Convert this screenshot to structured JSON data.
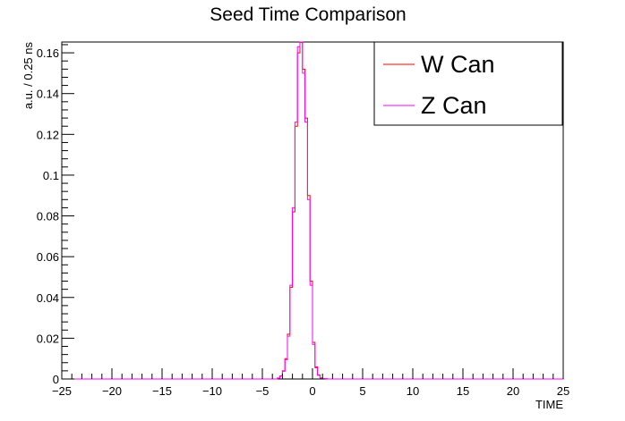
{
  "chart_data": {
    "type": "histogram",
    "title": "Seed Time Comparison",
    "xlabel": "TIME",
    "ylabel": "a.u. / 0.25 ns",
    "xlim": [
      -25,
      25
    ],
    "ylim": [
      0,
      0.1653
    ],
    "bin_width": 0.25,
    "x_ticks": [
      -25,
      -20,
      -15,
      -10,
      -5,
      0,
      5,
      10,
      15,
      20,
      25
    ],
    "x_tick_labels": [
      "−25",
      "−20",
      "−15",
      "−10",
      "−5",
      "0",
      "5",
      "10",
      "15",
      "20",
      "25"
    ],
    "y_ticks": [
      0,
      0.02,
      0.04,
      0.06,
      0.08,
      0.1,
      0.12,
      0.14,
      0.16
    ],
    "y_tick_labels": [
      "0",
      "0.02",
      "0.04",
      "0.06",
      "0.08",
      "0.1",
      "0.12",
      "0.14",
      "0.16"
    ],
    "legend_position": "top-right",
    "series": [
      {
        "name": "W Can",
        "color": "#ff0000",
        "bin_edges_low": [
          -3.5,
          -3.25,
          -3.0,
          -2.75,
          -2.5,
          -2.25,
          -2.0,
          -1.75,
          -1.5,
          -1.25,
          -1.0,
          -0.75,
          -0.5,
          -0.25,
          0.0,
          0.25,
          0.5,
          0.75,
          1.0,
          1.25,
          1.5
        ],
        "values": [
          0.0005,
          0.0015,
          0.004,
          0.01,
          0.022,
          0.045,
          0.082,
          0.124,
          0.16,
          0.165,
          0.152,
          0.128,
          0.09,
          0.048,
          0.018,
          0.006,
          0.002,
          0.0005,
          0.0002,
          0.0001,
          0.0
        ]
      },
      {
        "name": "Z Can",
        "color": "#ff00ff",
        "bin_edges_low": [
          -3.5,
          -3.25,
          -3.0,
          -2.75,
          -2.5,
          -2.25,
          -2.0,
          -1.75,
          -1.5,
          -1.25,
          -1.0,
          -0.75,
          -0.5,
          -0.25,
          0.0,
          0.25,
          0.5,
          0.75,
          1.0,
          1.25,
          1.5
        ],
        "values": [
          0.0004,
          0.0014,
          0.0038,
          0.0095,
          0.021,
          0.046,
          0.084,
          0.126,
          0.163,
          0.1653,
          0.15,
          0.126,
          0.088,
          0.046,
          0.017,
          0.0055,
          0.0018,
          0.0005,
          0.0002,
          0.0001,
          0.0
        ]
      }
    ]
  }
}
